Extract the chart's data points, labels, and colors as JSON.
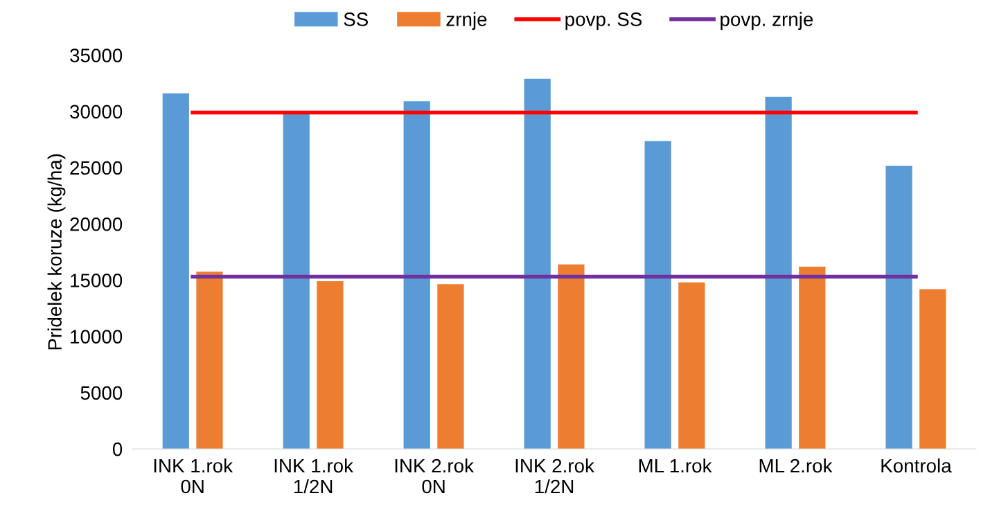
{
  "chart_data": {
    "type": "bar",
    "ylabel": "Pridelek koruze (kg/ha)",
    "categories": [
      "INK 1.rok\n0N",
      "INK 1.rok\n1/2N",
      "INK 2.rok\n0N",
      "INK 2.rok\n1/2N",
      "ML 1.rok",
      "ML 2.rok",
      "Kontrola"
    ],
    "series": [
      {
        "name": "SS",
        "color": "#5b9bd5",
        "values": [
          31600,
          29900,
          30900,
          32900,
          27350,
          31300,
          25150
        ]
      },
      {
        "name": "zrnje",
        "color": "#ed7d31",
        "values": [
          15750,
          14900,
          14650,
          16400,
          14800,
          16200,
          14200
        ]
      },
      {
        "name": "povp. SS",
        "type": "line",
        "color": "#ff0000",
        "values": [
          29900,
          29900,
          29900,
          29900,
          29900,
          29900,
          29900
        ]
      },
      {
        "name": "povp. zrnje",
        "type": "line",
        "color": "#7030a0",
        "values": [
          15300,
          15300,
          15300,
          15300,
          15300,
          15300,
          15300
        ]
      }
    ],
    "ylim": [
      0,
      35000
    ],
    "yticks": [
      0,
      5000,
      10000,
      15000,
      20000,
      25000,
      30000,
      35000
    ],
    "grid": false,
    "legend": "top",
    "marker": "none"
  }
}
